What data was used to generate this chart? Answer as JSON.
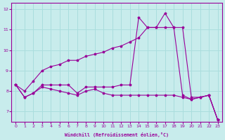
{
  "xlabel": "Windchill (Refroidissement éolien,°C)",
  "bg_color": "#c8ecec",
  "line_color": "#990099",
  "grid_color": "#aadddd",
  "ylim": [
    6.5,
    12.3
  ],
  "xlim": [
    -0.5,
    23.5
  ],
  "yticks": [
    7,
    8,
    9,
    10,
    11,
    12
  ],
  "xticks": [
    0,
    1,
    2,
    3,
    4,
    5,
    6,
    7,
    8,
    9,
    10,
    11,
    12,
    13,
    14,
    15,
    16,
    17,
    18,
    19,
    20,
    21,
    22,
    23
  ],
  "line1_x": [
    0,
    1,
    2,
    3,
    4,
    5,
    6,
    7,
    8,
    9,
    10,
    11,
    12,
    13,
    14,
    15,
    16,
    17,
    18,
    19,
    20,
    21,
    22,
    23
  ],
  "line1_y": [
    8.3,
    7.7,
    7.9,
    8.2,
    8.1,
    8.0,
    7.9,
    7.8,
    8.0,
    8.1,
    7.9,
    7.8,
    7.8,
    7.8,
    7.8,
    7.8,
    7.8,
    7.8,
    7.8,
    7.7,
    7.6,
    7.7,
    7.8,
    6.6
  ],
  "line2_x": [
    0,
    1,
    2,
    3,
    4,
    5,
    6,
    7,
    8,
    9,
    10,
    11,
    12,
    13,
    14,
    15,
    16,
    17,
    18,
    19,
    20,
    21,
    22,
    23
  ],
  "line2_y": [
    8.3,
    7.7,
    7.9,
    8.3,
    8.3,
    8.3,
    8.3,
    7.9,
    8.2,
    8.2,
    8.2,
    8.2,
    8.3,
    8.3,
    11.6,
    11.1,
    11.1,
    11.8,
    11.1,
    7.8,
    7.6,
    7.7,
    7.8,
    6.6
  ],
  "line3_x": [
    0,
    1,
    2,
    3,
    4,
    5,
    6,
    7,
    8,
    9,
    10,
    11,
    12,
    13,
    14,
    15,
    16,
    17,
    18,
    19,
    20,
    21,
    22,
    23
  ],
  "line3_y": [
    8.3,
    8.0,
    8.5,
    9.0,
    9.2,
    9.3,
    9.5,
    9.5,
    9.7,
    9.8,
    9.9,
    10.1,
    10.2,
    10.4,
    10.6,
    11.1,
    11.1,
    11.1,
    11.1,
    11.1,
    7.7,
    7.7,
    7.8,
    6.6
  ]
}
